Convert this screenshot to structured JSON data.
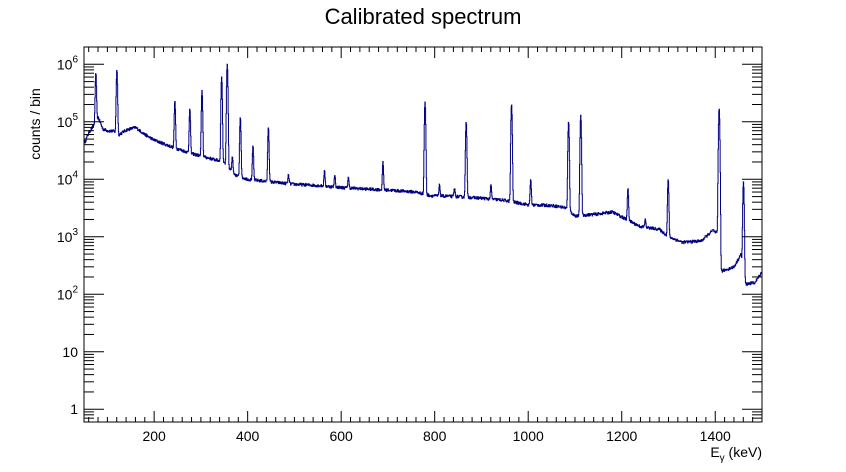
{
  "chart_data": {
    "type": "line",
    "title": "Calibrated spectrum",
    "xlabel": "E",
    "xlabel_sub": "γ",
    "xlabel_unit": " (keV)",
    "ylabel": "counts / bin",
    "xlim": [
      50,
      1500
    ],
    "ylim": [
      0.6,
      2000000
    ],
    "y_scale": "log",
    "grid": false,
    "legend": "none",
    "line_color": "#000080",
    "x_ticks": [
      200,
      400,
      600,
      800,
      1000,
      1200,
      1400
    ],
    "x_tick_labels": [
      "200",
      "400",
      "600",
      "800",
      "1000",
      "1200",
      "1400"
    ],
    "y_ticks": [
      1,
      10,
      100,
      1000,
      10000,
      100000,
      1000000
    ],
    "y_tick_labels": [
      {
        "base": "1",
        "exp": ""
      },
      {
        "base": "10",
        "exp": ""
      },
      {
        "base": "10",
        "exp": "2"
      },
      {
        "base": "10",
        "exp": "3"
      },
      {
        "base": "10",
        "exp": "4"
      },
      {
        "base": "10",
        "exp": "5"
      },
      {
        "base": "10",
        "exp": "6"
      }
    ],
    "continuum": [
      {
        "x": 52,
        "y": 45000
      },
      {
        "x": 60,
        "y": 65000
      },
      {
        "x": 70,
        "y": 85000
      },
      {
        "x": 80,
        "y": 120000
      },
      {
        "x": 90,
        "y": 75000
      },
      {
        "x": 100,
        "y": 70000
      },
      {
        "x": 115,
        "y": 68000
      },
      {
        "x": 125,
        "y": 60000
      },
      {
        "x": 140,
        "y": 72000
      },
      {
        "x": 160,
        "y": 80000
      },
      {
        "x": 180,
        "y": 60000
      },
      {
        "x": 200,
        "y": 48000
      },
      {
        "x": 240,
        "y": 36000
      },
      {
        "x": 280,
        "y": 28000
      },
      {
        "x": 320,
        "y": 23000
      },
      {
        "x": 350,
        "y": 20000
      },
      {
        "x": 370,
        "y": 12000
      },
      {
        "x": 400,
        "y": 10000
      },
      {
        "x": 450,
        "y": 9000
      },
      {
        "x": 500,
        "y": 8200
      },
      {
        "x": 550,
        "y": 7800
      },
      {
        "x": 600,
        "y": 7200
      },
      {
        "x": 650,
        "y": 6800
      },
      {
        "x": 700,
        "y": 6500
      },
      {
        "x": 760,
        "y": 6000
      },
      {
        "x": 790,
        "y": 5200
      },
      {
        "x": 850,
        "y": 5000
      },
      {
        "x": 900,
        "y": 4700
      },
      {
        "x": 950,
        "y": 4300
      },
      {
        "x": 1000,
        "y": 3600
      },
      {
        "x": 1050,
        "y": 3500
      },
      {
        "x": 1080,
        "y": 3200
      },
      {
        "x": 1100,
        "y": 2300
      },
      {
        "x": 1150,
        "y": 2500
      },
      {
        "x": 1180,
        "y": 2700
      },
      {
        "x": 1210,
        "y": 2000
      },
      {
        "x": 1240,
        "y": 1500
      },
      {
        "x": 1280,
        "y": 1350
      },
      {
        "x": 1300,
        "y": 1000
      },
      {
        "x": 1330,
        "y": 800
      },
      {
        "x": 1370,
        "y": 850
      },
      {
        "x": 1395,
        "y": 1300
      },
      {
        "x": 1405,
        "y": 1100
      },
      {
        "x": 1412,
        "y": 250
      },
      {
        "x": 1440,
        "y": 300
      },
      {
        "x": 1455,
        "y": 500
      },
      {
        "x": 1465,
        "y": 150
      },
      {
        "x": 1485,
        "y": 160
      },
      {
        "x": 1500,
        "y": 250
      }
    ],
    "peaks": [
      {
        "x": 75,
        "y": 700000
      },
      {
        "x": 120,
        "y": 800000
      },
      {
        "x": 244,
        "y": 230000
      },
      {
        "x": 276,
        "y": 170000
      },
      {
        "x": 302,
        "y": 350000
      },
      {
        "x": 344,
        "y": 600000
      },
      {
        "x": 356,
        "y": 1000000
      },
      {
        "x": 367,
        "y": 25000
      },
      {
        "x": 384,
        "y": 120000
      },
      {
        "x": 411,
        "y": 38000
      },
      {
        "x": 444,
        "y": 80000
      },
      {
        "x": 487,
        "y": 12000
      },
      {
        "x": 564,
        "y": 14000
      },
      {
        "x": 586,
        "y": 12000
      },
      {
        "x": 615,
        "y": 11000
      },
      {
        "x": 689,
        "y": 20000
      },
      {
        "x": 779,
        "y": 220000
      },
      {
        "x": 810,
        "y": 8000
      },
      {
        "x": 842,
        "y": 7000
      },
      {
        "x": 867,
        "y": 100000
      },
      {
        "x": 920,
        "y": 8000
      },
      {
        "x": 964,
        "y": 200000
      },
      {
        "x": 1005,
        "y": 10000
      },
      {
        "x": 1086,
        "y": 100000
      },
      {
        "x": 1112,
        "y": 130000
      },
      {
        "x": 1213,
        "y": 7000
      },
      {
        "x": 1250,
        "y": 2000
      },
      {
        "x": 1299,
        "y": 10000
      },
      {
        "x": 1408,
        "y": 170000
      },
      {
        "x": 1460,
        "y": 9000
      }
    ]
  }
}
